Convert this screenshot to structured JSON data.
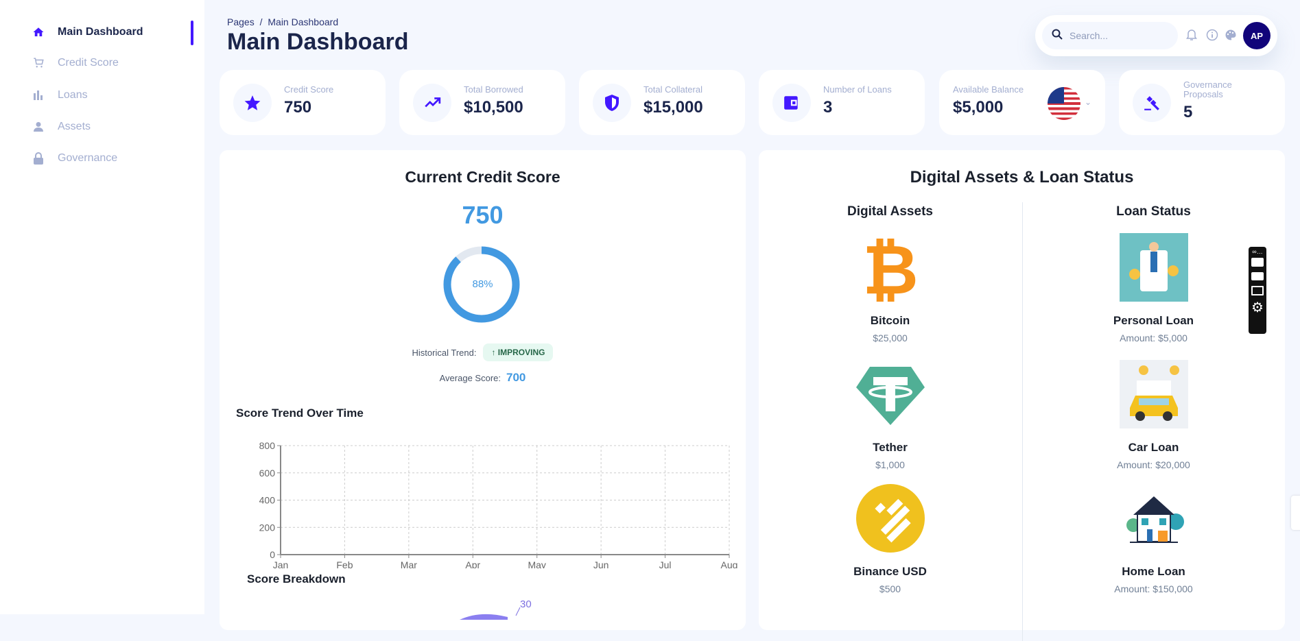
{
  "sidebar": {
    "items": [
      {
        "label": "Main Dashboard",
        "icon": "home-icon",
        "active": true
      },
      {
        "label": "Credit Score",
        "icon": "cart-icon"
      },
      {
        "label": "Loans",
        "icon": "bar-chart-icon"
      },
      {
        "label": "Assets",
        "icon": "person-icon"
      },
      {
        "label": "Governance",
        "icon": "lock-icon"
      }
    ]
  },
  "header": {
    "breadcrumb_root": "Pages",
    "breadcrumb_sep": "/",
    "breadcrumb_current": "Main Dashboard",
    "title": "Main Dashboard",
    "search_placeholder": "Search...",
    "avatar_initials": "AP"
  },
  "stats": [
    {
      "label": "Credit Score",
      "value": "750",
      "icon": "star-icon"
    },
    {
      "label": "Total Borrowed",
      "value": "$10,500",
      "icon": "trending-up-icon"
    },
    {
      "label": "Total Collateral",
      "value": "$15,000",
      "icon": "shield-icon"
    },
    {
      "label": "Number of Loans",
      "value": "3",
      "icon": "wallet-icon"
    },
    {
      "label": "Available Balance",
      "value": "$5,000",
      "icon": "us-flag-icon"
    },
    {
      "label": "Governance Proposals",
      "value": "5",
      "icon": "gavel-icon"
    }
  ],
  "credit": {
    "title": "Current Credit Score",
    "score": "750",
    "percent_label": "88%",
    "percent": 88,
    "trend_label": "Historical Trend:",
    "trend_badge": "↑ IMPROVING",
    "avg_label": "Average Score:",
    "avg_value": "700",
    "accent": "#4299e1"
  },
  "chart_data": {
    "type": "line",
    "title": "Score Trend Over Time",
    "categories": [
      "Jan",
      "Feb",
      "Mar",
      "Apr",
      "May",
      "Jun",
      "Jul",
      "Aug"
    ],
    "series": [],
    "yticks": [
      "0",
      "200",
      "400",
      "600",
      "800"
    ],
    "ylim": [
      0,
      800
    ],
    "grid": true
  },
  "breakdown": {
    "title": "Score Breakdown",
    "visible_label": "30"
  },
  "assets_panel": {
    "title": "Digital Assets & Loan Status",
    "assets_header": "Digital Assets",
    "loans_header": "Loan Status",
    "assets": [
      {
        "name": "Bitcoin",
        "value": "$25,000"
      },
      {
        "name": "Tether",
        "value": "$1,000"
      },
      {
        "name": "Binance USD",
        "value": "$500"
      }
    ],
    "loans": [
      {
        "name": "Personal Loan",
        "value": "Amount: $5,000"
      },
      {
        "name": "Car Loan",
        "value": "Amount: $20,000"
      },
      {
        "name": "Home Loan",
        "value": "Amount: $150,000"
      }
    ]
  }
}
